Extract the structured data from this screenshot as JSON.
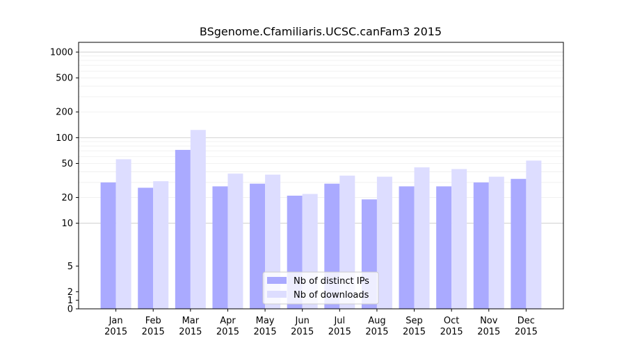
{
  "chart_data": {
    "type": "bar",
    "title": "BSgenome.Cfamiliaris.UCSC.canFam3 2015",
    "xlabel": "",
    "ylabel": "",
    "yscale": "symlog",
    "ylim": [
      0,
      1300
    ],
    "y_ticks": [
      0,
      1,
      2,
      5,
      10,
      20,
      50,
      100,
      200,
      500,
      1000
    ],
    "categories": [
      {
        "month": "Jan",
        "year": "2015"
      },
      {
        "month": "Feb",
        "year": "2015"
      },
      {
        "month": "Mar",
        "year": "2015"
      },
      {
        "month": "Apr",
        "year": "2015"
      },
      {
        "month": "May",
        "year": "2015"
      },
      {
        "month": "Jun",
        "year": "2015"
      },
      {
        "month": "Jul",
        "year": "2015"
      },
      {
        "month": "Aug",
        "year": "2015"
      },
      {
        "month": "Sep",
        "year": "2015"
      },
      {
        "month": "Oct",
        "year": "2015"
      },
      {
        "month": "Nov",
        "year": "2015"
      },
      {
        "month": "Dec",
        "year": "2015"
      }
    ],
    "series": [
      {
        "name": "Nb of distinct IPs",
        "color": "#aaaaff",
        "values": [
          30,
          26,
          72,
          27,
          29,
          21,
          29,
          19,
          27,
          27,
          30,
          33
        ]
      },
      {
        "name": "Nb of downloads",
        "color": "#ddddff",
        "values": [
          56,
          31,
          123,
          38,
          37,
          22,
          36,
          35,
          45,
          43,
          35,
          54
        ]
      }
    ],
    "grid": true,
    "legend_position": "bottom-center"
  }
}
